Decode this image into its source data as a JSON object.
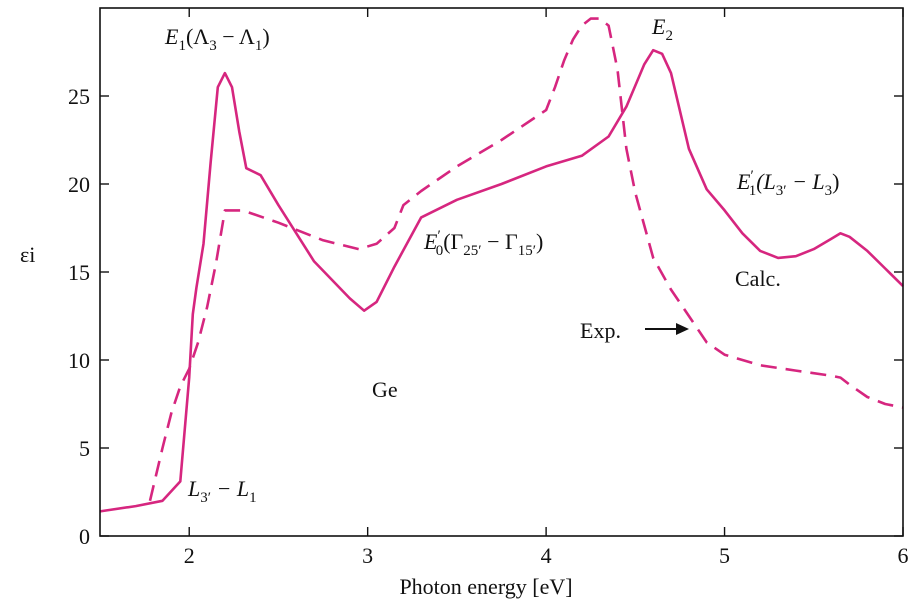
{
  "chart_data": {
    "type": "line",
    "xlabel": "Photon energy   [eV]",
    "ylabel": "εi",
    "xlim": [
      1.5,
      6
    ],
    "ylim": [
      0,
      30
    ],
    "xticks": [
      "2",
      "3",
      "4",
      "5",
      "6"
    ],
    "yticks": [
      "0",
      "5",
      "10",
      "15",
      "20",
      "25"
    ],
    "grid": false,
    "colors": {
      "curve": "#d6267f",
      "axis": "#111111"
    },
    "series": [
      {
        "name": "Calc.",
        "style": "solid",
        "x": [
          1.5,
          1.7,
          1.85,
          1.95,
          2.0,
          2.02,
          2.04,
          2.08,
          2.12,
          2.16,
          2.2,
          2.24,
          2.28,
          2.32,
          2.4,
          2.5,
          2.7,
          2.9,
          2.98,
          3.05,
          3.15,
          3.3,
          3.5,
          3.75,
          4.0,
          4.2,
          4.35,
          4.45,
          4.55,
          4.6,
          4.65,
          4.7,
          4.8,
          4.9,
          5.0,
          5.1,
          5.2,
          5.3,
          5.4,
          5.5,
          5.6,
          5.65,
          5.7,
          5.8,
          5.9,
          6.0
        ],
        "y": [
          1.4,
          1.7,
          2.0,
          3.1,
          9.0,
          12.6,
          14.1,
          16.6,
          21.2,
          25.5,
          26.3,
          25.5,
          23.0,
          20.9,
          20.5,
          18.8,
          15.6,
          13.5,
          12.8,
          13.3,
          15.3,
          18.1,
          19.1,
          20.0,
          21.0,
          21.6,
          22.7,
          24.4,
          26.8,
          27.6,
          27.4,
          26.3,
          22.0,
          19.7,
          18.5,
          17.2,
          16.2,
          15.8,
          15.9,
          16.3,
          16.9,
          17.2,
          17.0,
          16.2,
          15.2,
          14.2
        ]
      },
      {
        "name": "Exp.",
        "style": "dashed",
        "x": [
          1.78,
          1.85,
          1.9,
          1.95,
          2.0,
          2.05,
          2.1,
          2.15,
          2.2,
          2.3,
          2.5,
          2.75,
          2.95,
          3.05,
          3.15,
          3.2,
          3.3,
          3.5,
          3.75,
          4.0,
          4.05,
          4.1,
          4.15,
          4.2,
          4.25,
          4.3,
          4.35,
          4.4,
          4.45,
          4.5,
          4.6,
          4.7,
          4.8,
          4.9,
          5.0,
          5.2,
          5.4,
          5.6,
          5.65,
          5.7,
          5.8,
          5.9,
          6.0
        ],
        "y": [
          2.0,
          5.0,
          7.0,
          8.5,
          9.5,
          11.0,
          13.0,
          15.5,
          18.5,
          18.5,
          17.8,
          16.8,
          16.3,
          16.6,
          17.5,
          18.8,
          19.6,
          21.0,
          22.5,
          24.2,
          25.5,
          27.0,
          28.2,
          29.0,
          29.4,
          29.4,
          29.0,
          26.5,
          22.0,
          19.5,
          15.8,
          14.0,
          12.5,
          11.0,
          10.3,
          9.7,
          9.4,
          9.1,
          9.0,
          8.6,
          7.9,
          7.5,
          7.3
        ]
      }
    ],
    "annotations": {
      "e1": {
        "base": "E",
        "sub1": "1",
        "open": "(Λ",
        "sub2": "3",
        "mid": " − Λ",
        "sub3": "1",
        "close": ")"
      },
      "e2": {
        "base": "E",
        "sub1": "2"
      },
      "e1p": {
        "base": "E",
        "prime": "′",
        "sub1": "1",
        "open": "(L",
        "sub2": "3′",
        "mid": " − L",
        "sub3": "3",
        "close": ")"
      },
      "e0p": {
        "base": "E",
        "prime": "′",
        "sub1": "0",
        "open": "(Γ",
        "sub2": "25′",
        "mid": " − Γ",
        "sub3": "15′",
        "close": ")"
      },
      "l3l1": {
        "base": "L",
        "sub1": "3′",
        "mid": " − L",
        "sub2": "1"
      },
      "calc": "Calc.",
      "exp": "Exp.",
      "ge": "Ge"
    }
  }
}
